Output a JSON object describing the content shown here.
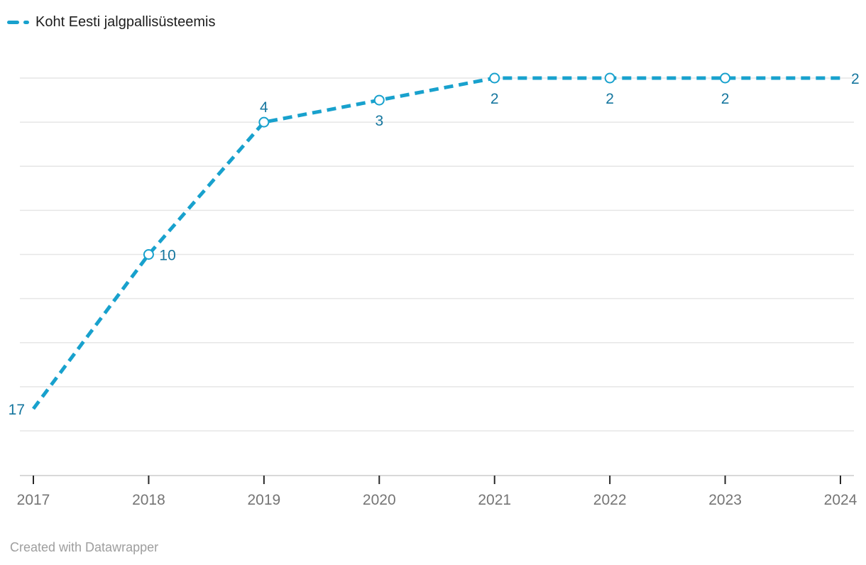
{
  "legend": {
    "label": "Koht Eesti jalgpallisüsteemis"
  },
  "attribution": "Created with Datawrapper",
  "colors": {
    "line": "#18a1cd",
    "value_label": "#15769e",
    "grid": "#e6e6e6",
    "axis_line": "#cccccc",
    "tick": "#282828",
    "x_label": "#757575",
    "legend_text": "#1d1d1d",
    "attribution_text": "#9e9e9e",
    "background": "#ffffff"
  },
  "chart_data": {
    "type": "line",
    "title": "",
    "legend_entries": [
      "Koht Eesti jalgpallisüsteemis"
    ],
    "x": [
      2017,
      2018,
      2019,
      2020,
      2021,
      2022,
      2023,
      2024
    ],
    "series": [
      {
        "name": "Koht Eesti jalgpallisüsteemis",
        "values": [
          17,
          10,
          4,
          3,
          2,
          2,
          2,
          2
        ]
      }
    ],
    "line_style": "dashed",
    "markers": [
      false,
      true,
      true,
      true,
      true,
      true,
      true,
      false
    ],
    "label_positions": [
      "left",
      "right",
      "above",
      "below",
      "below",
      "below",
      "below",
      "right"
    ],
    "y_axis": {
      "inverted": true,
      "top_value": 2,
      "bottom_value": 20,
      "gridlines": [
        2,
        4,
        6,
        8,
        10,
        12,
        14,
        16,
        18
      ],
      "tick_labels_visible": false
    },
    "x_axis": {
      "tick_labels_visible": true,
      "grid": false
    },
    "legend_position": "top-left"
  }
}
